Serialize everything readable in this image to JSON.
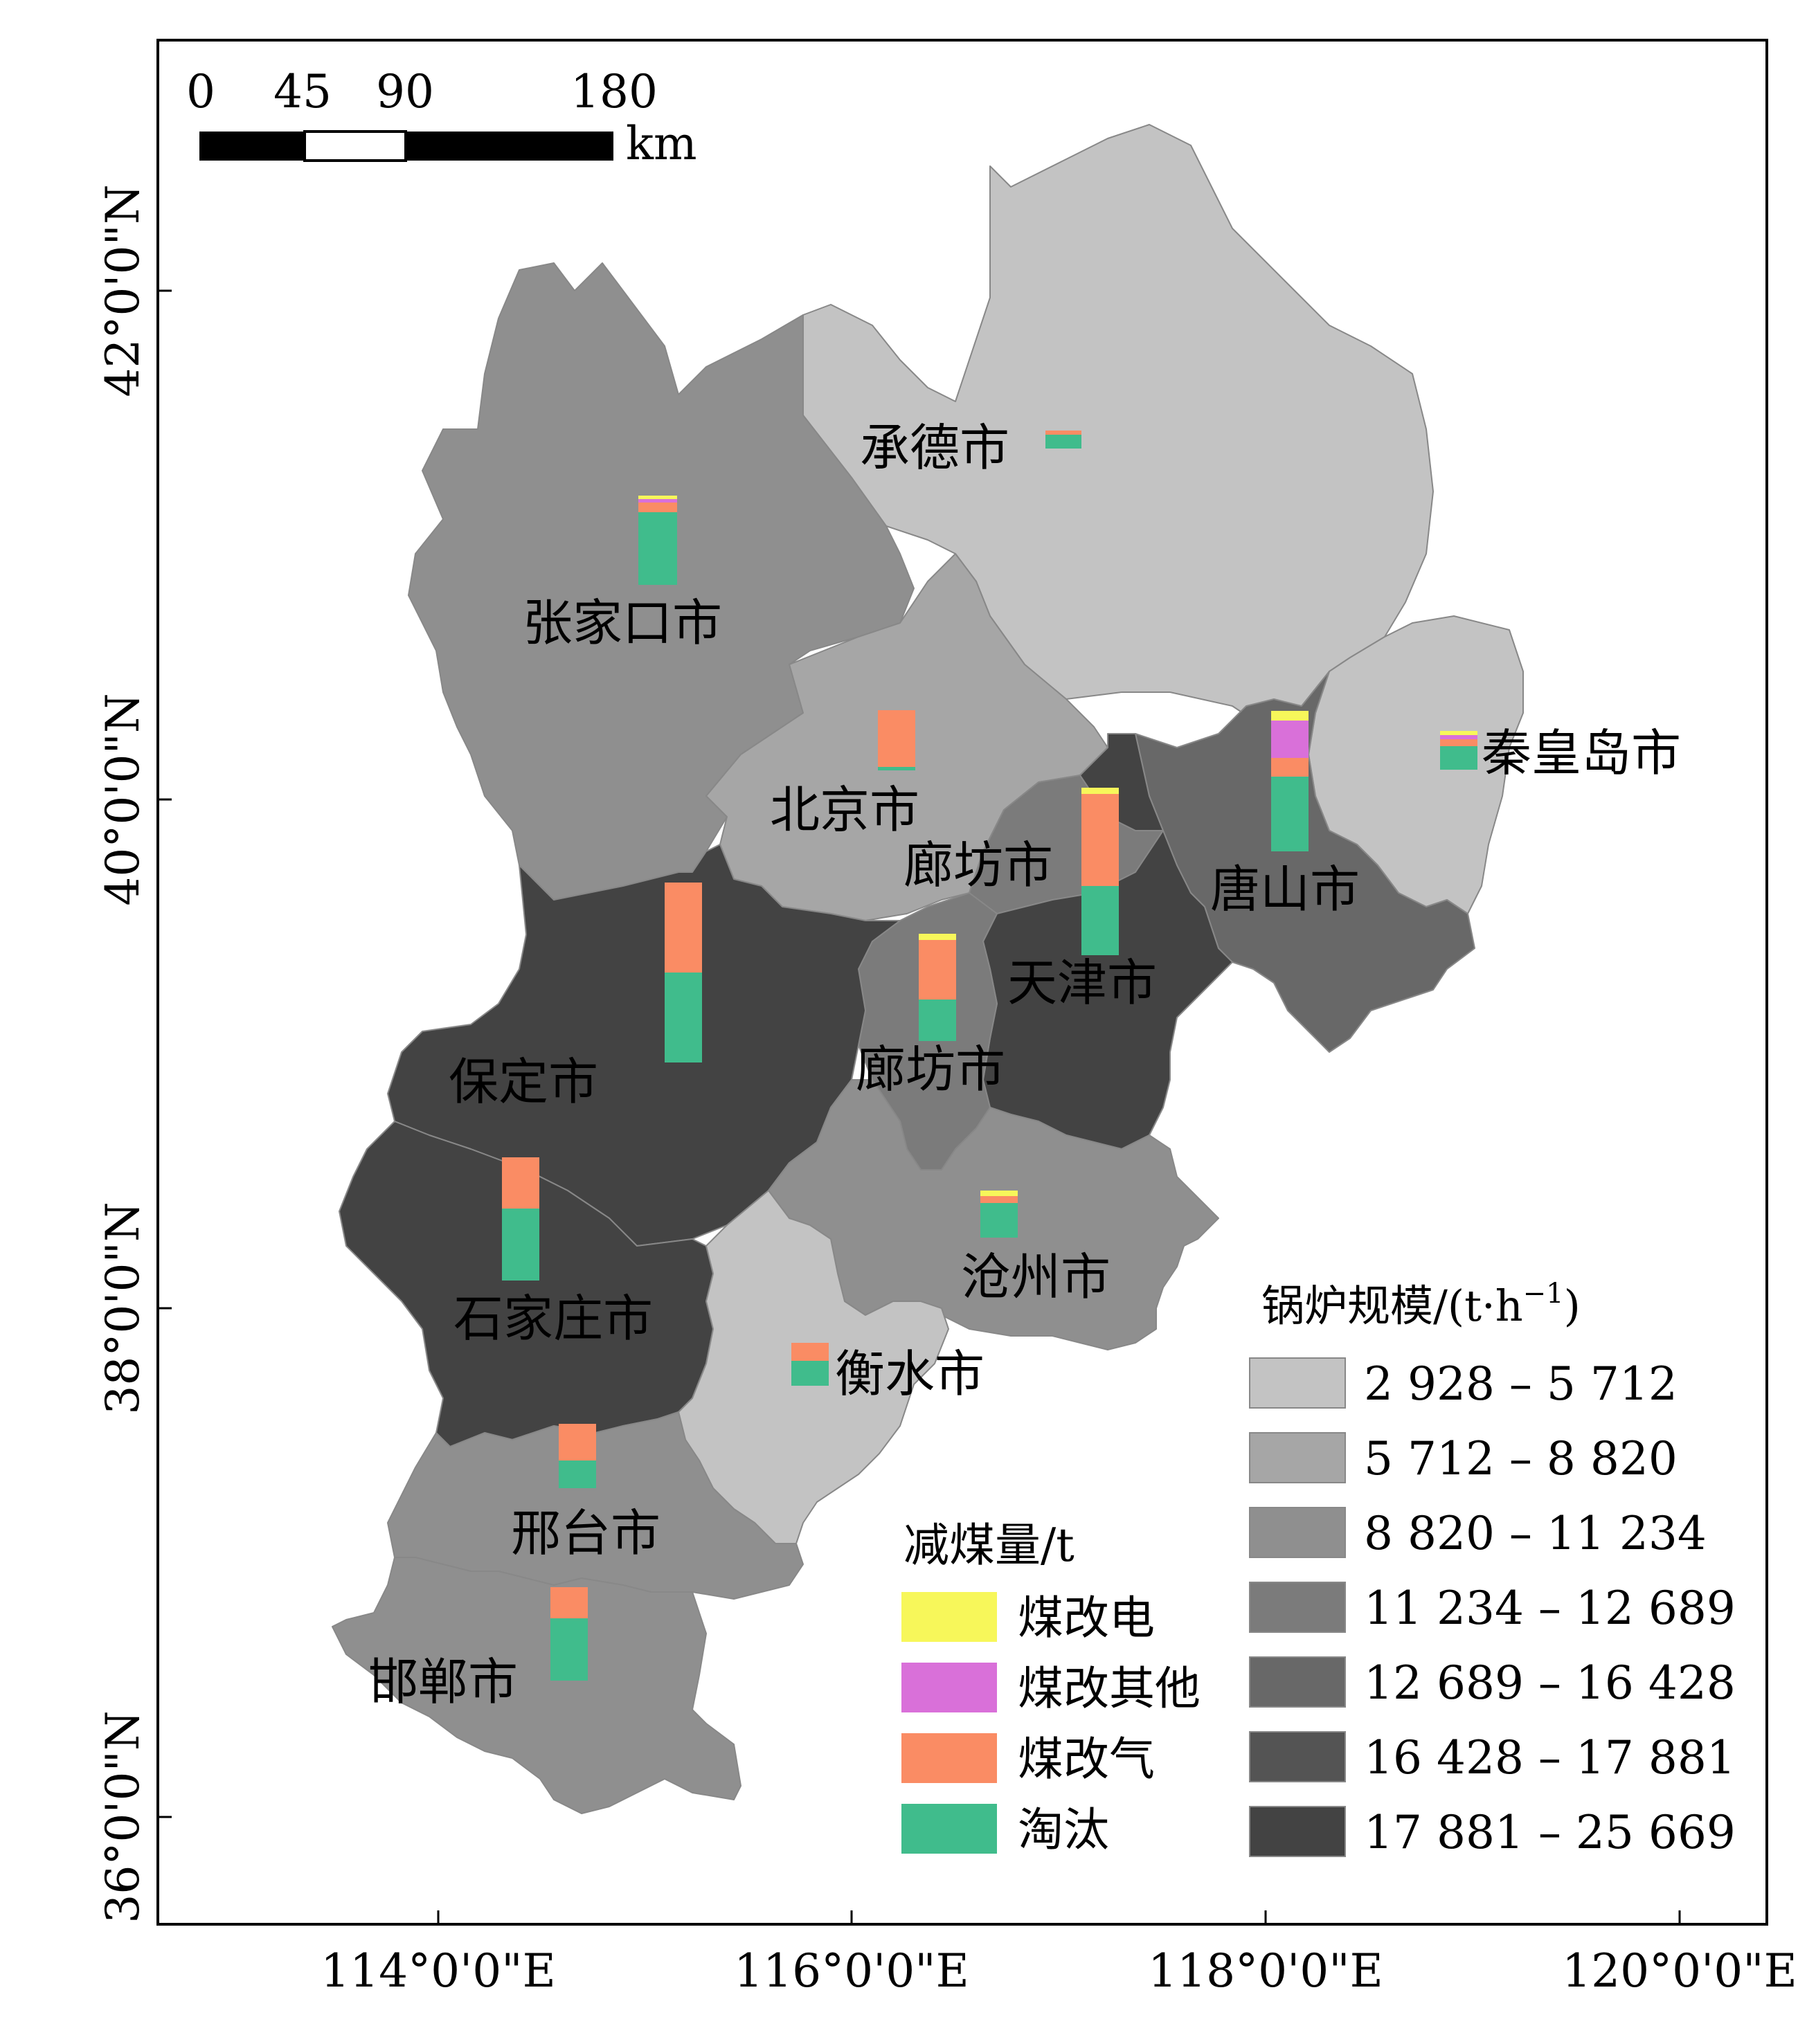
{
  "scale_bar": {
    "ticks": [
      "0",
      "45",
      "90",
      "180"
    ],
    "unit": "km"
  },
  "latitude_labels": [
    "42°0'0\"N",
    "40°0'0\"N",
    "38°0'0\"N",
    "36°0'0\"N"
  ],
  "longitude_labels": [
    "114°0'0\"E",
    "116°0'0\"E",
    "118°0'0\"E",
    "120°0'0\"E"
  ],
  "cities": [
    {
      "name": "承德市"
    },
    {
      "name": "张家口市"
    },
    {
      "name": "北京市"
    },
    {
      "name": "秦皇岛市"
    },
    {
      "name": "廊坊市"
    },
    {
      "name": "唐山市"
    },
    {
      "name": "天津市"
    },
    {
      "name": "保定市"
    },
    {
      "name": "廊坊市"
    },
    {
      "name": "石家庄市"
    },
    {
      "name": "沧州市"
    },
    {
      "name": "衡水市"
    },
    {
      "name": "邢台市"
    },
    {
      "name": "邯郸市"
    }
  ],
  "coal_legend": {
    "title": "减煤量/t",
    "items": [
      {
        "label": "煤改电",
        "color": "#f7f75a"
      },
      {
        "label": "煤改其他",
        "color": "#d970d9"
      },
      {
        "label": "煤改气",
        "color": "#fa8c64"
      },
      {
        "label": "淘汰",
        "color": "#40bc8c"
      }
    ]
  },
  "boiler_legend": {
    "title": "锅炉规模/(t·h",
    "title_sup": "−1",
    "title_end": ")",
    "classes": [
      {
        "label": "2 928 – 5 712",
        "color": "#c3c3c3"
      },
      {
        "label": "5 712 – 8 820",
        "color": "#a6a6a6"
      },
      {
        "label": "8 820 – 11 234",
        "color": "#8f8f8f"
      },
      {
        "label": "11 234 – 12 689",
        "color": "#7b7b7b"
      },
      {
        "label": "12 689 – 16 428",
        "color": "#686868"
      },
      {
        "label": "16 428 – 17 881",
        "color": "#545454"
      },
      {
        "label": "17 881 – 25 669",
        "color": "#434343"
      }
    ]
  }
}
